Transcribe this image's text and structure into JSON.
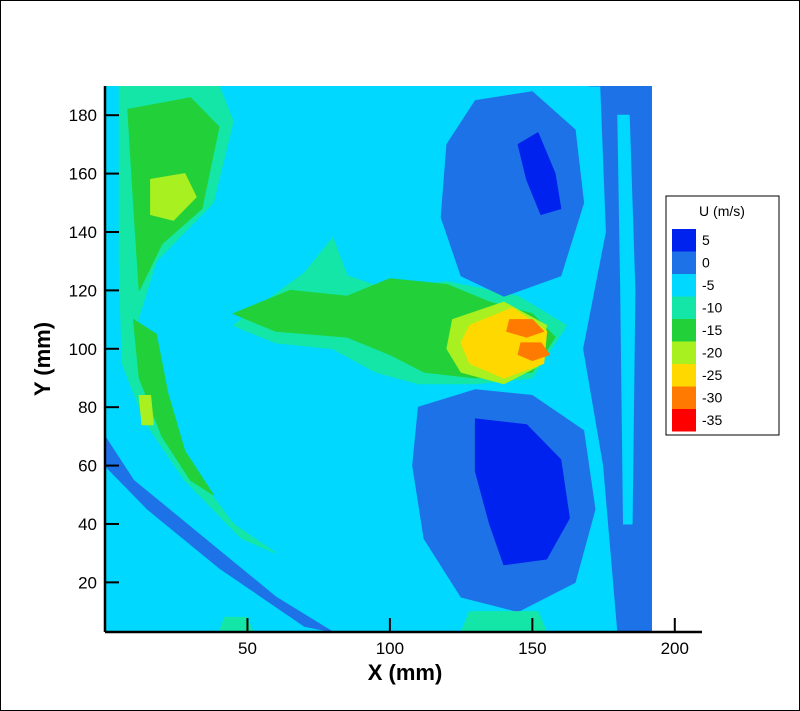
{
  "chart_data": {
    "type": "heatmap",
    "title": "",
    "xlabel": "X (mm)",
    "ylabel": "Y (mm)",
    "xlim": [
      0,
      200
    ],
    "ylim": [
      0,
      190
    ],
    "x_ticks": [
      "50",
      "100",
      "150",
      "200"
    ],
    "y_ticks": [
      "20",
      "40",
      "60",
      "80",
      "100",
      "120",
      "140",
      "160",
      "180"
    ],
    "data_extent": {
      "x": [
        0,
        192
      ],
      "y": [
        3,
        190
      ]
    },
    "background_level": 0,
    "legend": {
      "title": "U (m/s)",
      "placement": "right",
      "levels": [
        {
          "label": "5",
          "color": "#0022ee"
        },
        {
          "label": "0",
          "color": "#1e72e8"
        },
        {
          "label": "-5",
          "color": "#00d8ff"
        },
        {
          "label": "-10",
          "color": "#14e6a8"
        },
        {
          "label": "-15",
          "color": "#22d13a"
        },
        {
          "label": "-20",
          "color": "#a8f020"
        },
        {
          "label": "-25",
          "color": "#ffd800"
        },
        {
          "label": "-30",
          "color": "#ff7a00"
        },
        {
          "label": "-35",
          "color": "#ff0000"
        }
      ]
    },
    "regions": [
      {
        "name": "upper-left-jet",
        "level": 3,
        "points": [
          [
            5,
            190
          ],
          [
            40,
            190
          ],
          [
            45,
            178
          ],
          [
            38,
            150
          ],
          [
            18,
            130
          ],
          [
            10,
            105
          ],
          [
            18,
            80
          ],
          [
            30,
            60
          ],
          [
            45,
            40
          ],
          [
            60,
            30
          ],
          [
            48,
            35
          ],
          [
            28,
            55
          ],
          [
            14,
            75
          ],
          [
            6,
            95
          ],
          [
            5,
            130
          ]
        ]
      },
      {
        "name": "upper-left-core",
        "level": 4,
        "points": [
          [
            8,
            182
          ],
          [
            30,
            186
          ],
          [
            40,
            176
          ],
          [
            34,
            148
          ],
          [
            20,
            136
          ],
          [
            12,
            120
          ],
          [
            10,
            150
          ]
        ]
      },
      {
        "name": "upper-left-peak",
        "level": 5,
        "points": [
          [
            16,
            158
          ],
          [
            28,
            160
          ],
          [
            32,
            152
          ],
          [
            24,
            144
          ],
          [
            16,
            146
          ]
        ]
      },
      {
        "name": "left-band-core",
        "level": 4,
        "points": [
          [
            10,
            110
          ],
          [
            18,
            105
          ],
          [
            22,
            85
          ],
          [
            28,
            65
          ],
          [
            38,
            50
          ],
          [
            30,
            55
          ],
          [
            20,
            70
          ],
          [
            12,
            90
          ]
        ]
      },
      {
        "name": "left-band-peak",
        "level": 5,
        "points": [
          [
            12,
            84
          ],
          [
            16,
            84
          ],
          [
            17,
            74
          ],
          [
            13,
            74
          ]
        ]
      },
      {
        "name": "center-tongue",
        "level": 3,
        "points": [
          [
            45,
            108
          ],
          [
            70,
            126
          ],
          [
            80,
            138
          ],
          [
            85,
            125
          ],
          [
            100,
            120
          ],
          [
            120,
            123
          ],
          [
            145,
            118
          ],
          [
            162,
            108
          ],
          [
            150,
            90
          ],
          [
            130,
            88
          ],
          [
            110,
            88
          ],
          [
            95,
            92
          ],
          [
            80,
            100
          ],
          [
            60,
            102
          ]
        ]
      },
      {
        "name": "center-tongue-core",
        "level": 4,
        "points": [
          [
            45,
            112
          ],
          [
            65,
            120
          ],
          [
            85,
            118
          ],
          [
            100,
            124
          ],
          [
            120,
            122
          ],
          [
            135,
            116
          ],
          [
            150,
            112
          ],
          [
            158,
            104
          ],
          [
            150,
            92
          ],
          [
            130,
            90
          ],
          [
            112,
            92
          ],
          [
            100,
            98
          ],
          [
            85,
            104
          ],
          [
            60,
            106
          ]
        ]
      },
      {
        "name": "hot-spot-warm",
        "level": 5,
        "points": [
          [
            122,
            110
          ],
          [
            140,
            116
          ],
          [
            155,
            108
          ],
          [
            152,
            94
          ],
          [
            140,
            88
          ],
          [
            125,
            92
          ],
          [
            120,
            100
          ]
        ]
      },
      {
        "name": "hot-spot-yellow",
        "level": 6,
        "points": [
          [
            128,
            108
          ],
          [
            143,
            114
          ],
          [
            155,
            106
          ],
          [
            154,
            95
          ],
          [
            140,
            90
          ],
          [
            128,
            95
          ],
          [
            125,
            102
          ]
        ]
      },
      {
        "name": "hot-spot-orange-a",
        "level": 7,
        "points": [
          [
            142,
            110
          ],
          [
            150,
            110
          ],
          [
            154,
            106
          ],
          [
            148,
            104
          ],
          [
            141,
            106
          ]
        ]
      },
      {
        "name": "hot-spot-orange-b",
        "level": 7,
        "points": [
          [
            146,
            102
          ],
          [
            153,
            102
          ],
          [
            156,
            98
          ],
          [
            150,
            96
          ],
          [
            145,
            98
          ]
        ]
      },
      {
        "name": "lower-left-band",
        "level": 1,
        "points": [
          [
            0,
            60
          ],
          [
            15,
            45
          ],
          [
            40,
            25
          ],
          [
            70,
            5
          ],
          [
            80,
            3
          ],
          [
            60,
            15
          ],
          [
            35,
            35
          ],
          [
            10,
            55
          ],
          [
            0,
            70
          ]
        ]
      },
      {
        "name": "upper-vortex",
        "level": 1,
        "points": [
          [
            120,
            170
          ],
          [
            130,
            185
          ],
          [
            150,
            188
          ],
          [
            165,
            175
          ],
          [
            168,
            150
          ],
          [
            160,
            125
          ],
          [
            140,
            118
          ],
          [
            125,
            125
          ],
          [
            118,
            145
          ]
        ]
      },
      {
        "name": "upper-vortex-core",
        "level": 0,
        "points": [
          [
            145,
            170
          ],
          [
            152,
            174
          ],
          [
            158,
            160
          ],
          [
            160,
            148
          ],
          [
            153,
            146
          ],
          [
            148,
            158
          ]
        ]
      },
      {
        "name": "lower-vortex",
        "level": 1,
        "points": [
          [
            110,
            80
          ],
          [
            130,
            86
          ],
          [
            150,
            84
          ],
          [
            168,
            72
          ],
          [
            172,
            45
          ],
          [
            165,
            20
          ],
          [
            145,
            10
          ],
          [
            125,
            15
          ],
          [
            112,
            35
          ],
          [
            108,
            60
          ]
        ]
      },
      {
        "name": "lower-vortex-core",
        "level": 0,
        "points": [
          [
            130,
            76
          ],
          [
            148,
            74
          ],
          [
            160,
            62
          ],
          [
            163,
            42
          ],
          [
            155,
            28
          ],
          [
            140,
            26
          ],
          [
            135,
            40
          ],
          [
            130,
            58
          ]
        ]
      },
      {
        "name": "right-edge-band",
        "level": 1,
        "points": [
          [
            170,
            190
          ],
          [
            192,
            190
          ],
          [
            192,
            3
          ],
          [
            180,
            3
          ],
          [
            175,
            60
          ],
          [
            168,
            100
          ],
          [
            176,
            140
          ],
          [
            174,
            190
          ]
        ]
      },
      {
        "name": "right-edge-inner",
        "level": 2,
        "points": [
          [
            180,
            180
          ],
          [
            184,
            180
          ],
          [
            186,
            120
          ],
          [
            185,
            40
          ],
          [
            182,
            40
          ],
          [
            181,
            120
          ]
        ]
      },
      {
        "name": "bottom-green-patch",
        "level": 3,
        "points": [
          [
            125,
            3
          ],
          [
            155,
            3
          ],
          [
            152,
            10
          ],
          [
            128,
            10
          ]
        ]
      },
      {
        "name": "bottom-left-patch",
        "level": 3,
        "points": [
          [
            40,
            3
          ],
          [
            52,
            3
          ],
          [
            50,
            8
          ],
          [
            42,
            8
          ]
        ]
      }
    ]
  }
}
